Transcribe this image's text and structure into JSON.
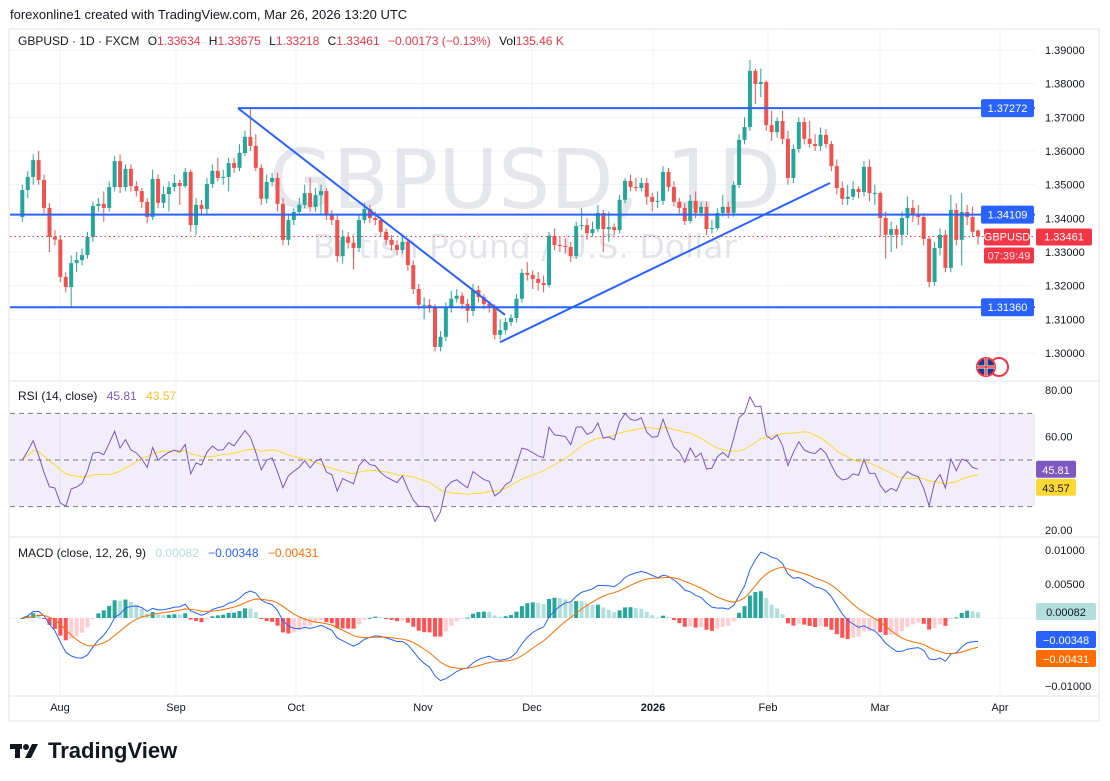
{
  "header": {
    "created_by": "forexonline1 created with TradingView.com, Mar 26, 2026 13:20 UTC"
  },
  "legend": {
    "symbol": "GBPUSD · 1D · FXCM",
    "open_label": "O",
    "open": "1.33634",
    "high_label": "H",
    "high": "1.33675",
    "low_label": "L",
    "low": "1.33218",
    "close_label": "C",
    "close": "1.33461",
    "change": "−0.00173 (−0.13%)",
    "volume_label": "Vol",
    "volume": "135.46 K"
  },
  "watermark": {
    "title": "GBPUSD, 1D",
    "subtitle": "British Pound / U.S. Dollar"
  },
  "price_label": {
    "symbol": "GBPUSD",
    "value": "1.33461",
    "countdown": "07:39:49"
  },
  "brand": "TradingView",
  "colors": {
    "up": "#26a69a",
    "down": "#ef5350",
    "drawing": "#2962ff",
    "rsi": "#7e57c2",
    "rsi_ma": "#fdd835",
    "macd": "#2962ff",
    "signal": "#ff6d00"
  },
  "chart_data": [
    {
      "type": "candlestick",
      "symbol": "GBPUSD",
      "interval": "1D",
      "ylim": [
        1.295,
        1.392
      ],
      "y_ticks": [
        "1.39000",
        "1.38000",
        "1.37000",
        "1.36000",
        "1.35000",
        "1.34000",
        "1.33000",
        "1.32000",
        "1.31000",
        "1.30000"
      ],
      "x_ticks": [
        "Aug",
        "Sep",
        "Oct",
        "Nov",
        "Dec",
        "2026",
        "Feb",
        "Mar",
        "Apr"
      ],
      "grid": true,
      "horizontal_lines": [
        {
          "price": 1.37272,
          "label": "1.37272"
        },
        {
          "price": 1.34109,
          "label": "1.34109"
        },
        {
          "price": 1.3136,
          "label": "1.31360"
        }
      ],
      "trend_lines": [
        {
          "from_price": 1.3727,
          "to_price": 1.3113
        },
        {
          "from_price": 1.3032,
          "to_price": 1.3505
        }
      ],
      "last_price": 1.33461,
      "candles": [
        [
          1.3404,
          1.35,
          1.339,
          1.3484
        ],
        [
          1.3484,
          1.354,
          1.346,
          1.3523
        ],
        [
          1.3523,
          1.359,
          1.35,
          1.3573
        ],
        [
          1.3573,
          1.36,
          1.35,
          1.3514
        ],
        [
          1.3514,
          1.353,
          1.3415,
          1.3431
        ],
        [
          1.3431,
          1.3445,
          1.33,
          1.3345
        ],
        [
          1.3345,
          1.3365,
          1.332,
          1.3337
        ],
        [
          1.3337,
          1.335,
          1.321,
          1.3226
        ],
        [
          1.3226,
          1.324,
          1.318,
          1.3196
        ],
        [
          1.3196,
          1.329,
          1.3134,
          1.3267
        ],
        [
          1.3267,
          1.33,
          1.324,
          1.3276
        ],
        [
          1.3276,
          1.331,
          1.326,
          1.3291
        ],
        [
          1.3291,
          1.336,
          1.328,
          1.3345
        ],
        [
          1.3345,
          1.345,
          1.333,
          1.3437
        ],
        [
          1.3437,
          1.346,
          1.342,
          1.3443
        ],
        [
          1.3443,
          1.348,
          1.339,
          1.3431
        ],
        [
          1.3431,
          1.351,
          1.342,
          1.3493
        ],
        [
          1.3493,
          1.3585,
          1.348,
          1.357
        ],
        [
          1.357,
          1.359,
          1.3475,
          1.3493
        ],
        [
          1.3493,
          1.356,
          1.348,
          1.3547
        ],
        [
          1.3547,
          1.356,
          1.348,
          1.3496
        ],
        [
          1.3496,
          1.351,
          1.3465,
          1.3481
        ],
        [
          1.3481,
          1.349,
          1.343,
          1.3449
        ],
        [
          1.3449,
          1.346,
          1.3385,
          1.3404
        ],
        [
          1.3404,
          1.3545,
          1.3395,
          1.3517
        ],
        [
          1.3517,
          1.353,
          1.343,
          1.3446
        ],
        [
          1.3446,
          1.3495,
          1.343,
          1.3472
        ],
        [
          1.3472,
          1.351,
          1.342,
          1.3493
        ],
        [
          1.3493,
          1.353,
          1.348,
          1.3505
        ],
        [
          1.3505,
          1.3515,
          1.344,
          1.3496
        ],
        [
          1.3496,
          1.355,
          1.349,
          1.3538
        ],
        [
          1.3538,
          1.3545,
          1.336,
          1.338
        ],
        [
          1.338,
          1.346,
          1.335,
          1.344
        ],
        [
          1.344,
          1.3455,
          1.341,
          1.3428
        ],
        [
          1.3428,
          1.352,
          1.341,
          1.3502
        ],
        [
          1.3502,
          1.356,
          1.349,
          1.3541
        ],
        [
          1.3541,
          1.358,
          1.351,
          1.352
        ],
        [
          1.352,
          1.3545,
          1.35,
          1.3523
        ],
        [
          1.3523,
          1.358,
          1.348,
          1.3564
        ],
        [
          1.3564,
          1.358,
          1.3535,
          1.355
        ],
        [
          1.355,
          1.362,
          1.354,
          1.3594
        ],
        [
          1.3594,
          1.366,
          1.3585,
          1.3642
        ],
        [
          1.3642,
          1.3728,
          1.36,
          1.3615
        ],
        [
          1.3615,
          1.365,
          1.354,
          1.355
        ],
        [
          1.355,
          1.356,
          1.344,
          1.3458
        ],
        [
          1.3458,
          1.353,
          1.3445,
          1.3508
        ],
        [
          1.3508,
          1.3535,
          1.3495,
          1.352
        ],
        [
          1.352,
          1.3535,
          1.342,
          1.3443
        ],
        [
          1.3443,
          1.346,
          1.332,
          1.3336
        ],
        [
          1.3336,
          1.341,
          1.332,
          1.3395
        ],
        [
          1.3395,
          1.343,
          1.338,
          1.3419
        ],
        [
          1.3419,
          1.346,
          1.341,
          1.344
        ],
        [
          1.344,
          1.35,
          1.343,
          1.3475
        ],
        [
          1.3475,
          1.352,
          1.342,
          1.3434
        ],
        [
          1.3434,
          1.349,
          1.342,
          1.3469
        ],
        [
          1.3469,
          1.35,
          1.341,
          1.3481
        ],
        [
          1.3481,
          1.349,
          1.3395,
          1.341
        ],
        [
          1.341,
          1.3425,
          1.338,
          1.3395
        ],
        [
          1.3395,
          1.341,
          1.327,
          1.3288
        ],
        [
          1.3288,
          1.3365,
          1.3265,
          1.3345
        ],
        [
          1.3345,
          1.336,
          1.331,
          1.3327
        ],
        [
          1.3327,
          1.3345,
          1.3248,
          1.3312
        ],
        [
          1.3312,
          1.341,
          1.33,
          1.3395
        ],
        [
          1.3395,
          1.3445,
          1.3385,
          1.3428
        ],
        [
          1.3428,
          1.344,
          1.3385,
          1.3401
        ],
        [
          1.3401,
          1.342,
          1.338,
          1.3395
        ],
        [
          1.3395,
          1.3405,
          1.3345,
          1.336
        ],
        [
          1.336,
          1.337,
          1.332,
          1.3336
        ],
        [
          1.3336,
          1.335,
          1.3305,
          1.3321
        ],
        [
          1.3321,
          1.3335,
          1.329,
          1.3306
        ],
        [
          1.3306,
          1.335,
          1.3295,
          1.333
        ],
        [
          1.333,
          1.334,
          1.3245,
          1.3261
        ],
        [
          1.3261,
          1.3275,
          1.3175,
          1.319
        ],
        [
          1.319,
          1.3205,
          1.313,
          1.3143
        ],
        [
          1.3143,
          1.3165,
          1.31,
          1.3143
        ],
        [
          1.3143,
          1.316,
          1.312,
          1.3137
        ],
        [
          1.3137,
          1.3145,
          1.3005,
          1.3018
        ],
        [
          1.3018,
          1.3065,
          1.3005,
          1.3048
        ],
        [
          1.3048,
          1.315,
          1.3035,
          1.3137
        ],
        [
          1.3137,
          1.3185,
          1.312,
          1.3161
        ],
        [
          1.3161,
          1.319,
          1.315,
          1.317
        ],
        [
          1.317,
          1.318,
          1.313,
          1.3146
        ],
        [
          1.3146,
          1.316,
          1.309,
          1.3125
        ],
        [
          1.3125,
          1.3205,
          1.311,
          1.3187
        ],
        [
          1.3187,
          1.32,
          1.315,
          1.3166
        ],
        [
          1.3166,
          1.3175,
          1.313,
          1.3146
        ],
        [
          1.3146,
          1.3155,
          1.312,
          1.3137
        ],
        [
          1.3137,
          1.3145,
          1.304,
          1.3054
        ],
        [
          1.3054,
          1.31,
          1.304,
          1.3068
        ],
        [
          1.3068,
          1.3105,
          1.3055,
          1.3092
        ],
        [
          1.3092,
          1.3115,
          1.308,
          1.3104
        ],
        [
          1.3104,
          1.3175,
          1.309,
          1.3161
        ],
        [
          1.3161,
          1.325,
          1.315,
          1.3238
        ],
        [
          1.3238,
          1.327,
          1.3215,
          1.3232
        ],
        [
          1.3232,
          1.3245,
          1.319,
          1.322
        ],
        [
          1.322,
          1.324,
          1.3185,
          1.3208
        ],
        [
          1.3208,
          1.323,
          1.318,
          1.3202
        ],
        [
          1.3202,
          1.336,
          1.3195,
          1.3348
        ],
        [
          1.3348,
          1.337,
          1.3305,
          1.3321
        ],
        [
          1.3321,
          1.3345,
          1.33,
          1.3318
        ],
        [
          1.3318,
          1.334,
          1.3295,
          1.3315
        ],
        [
          1.3315,
          1.333,
          1.327,
          1.3288
        ],
        [
          1.3288,
          1.339,
          1.328,
          1.3377
        ],
        [
          1.3377,
          1.343,
          1.3365,
          1.338
        ],
        [
          1.338,
          1.34,
          1.3335,
          1.3356
        ],
        [
          1.3356,
          1.339,
          1.3345,
          1.3368
        ],
        [
          1.3368,
          1.344,
          1.336,
          1.3416
        ],
        [
          1.3416,
          1.3425,
          1.33,
          1.3368
        ],
        [
          1.3368,
          1.342,
          1.333,
          1.3374
        ],
        [
          1.3374,
          1.3385,
          1.335,
          1.3365
        ],
        [
          1.3365,
          1.347,
          1.3355,
          1.3455
        ],
        [
          1.3455,
          1.352,
          1.3445,
          1.3511
        ],
        [
          1.3511,
          1.353,
          1.348,
          1.3493
        ],
        [
          1.3493,
          1.352,
          1.348,
          1.349
        ],
        [
          1.349,
          1.352,
          1.348,
          1.3505
        ],
        [
          1.3505,
          1.352,
          1.344,
          1.3464
        ],
        [
          1.3464,
          1.3475,
          1.342,
          1.3449
        ],
        [
          1.3449,
          1.348,
          1.343,
          1.3452
        ],
        [
          1.3452,
          1.3555,
          1.344,
          1.3538
        ],
        [
          1.3538,
          1.355,
          1.348,
          1.3493
        ],
        [
          1.3493,
          1.351,
          1.3435,
          1.3449
        ],
        [
          1.3449,
          1.346,
          1.3415,
          1.3431
        ],
        [
          1.3431,
          1.3445,
          1.338,
          1.3392
        ],
        [
          1.3392,
          1.347,
          1.3385,
          1.3452
        ],
        [
          1.3452,
          1.348,
          1.34,
          1.3416
        ],
        [
          1.3416,
          1.345,
          1.3405,
          1.3434
        ],
        [
          1.3434,
          1.345,
          1.335,
          1.3368
        ],
        [
          1.3368,
          1.3395,
          1.3355,
          1.3371
        ],
        [
          1.3371,
          1.343,
          1.3365,
          1.3416
        ],
        [
          1.3416,
          1.347,
          1.3405,
          1.3434
        ],
        [
          1.3434,
          1.345,
          1.34,
          1.3416
        ],
        [
          1.3416,
          1.351,
          1.3405,
          1.3499
        ],
        [
          1.3499,
          1.365,
          1.349,
          1.3633
        ],
        [
          1.3633,
          1.37,
          1.362,
          1.3671
        ],
        [
          1.3671,
          1.387,
          1.366,
          1.3838
        ],
        [
          1.3838,
          1.3845,
          1.374,
          1.3799
        ],
        [
          1.3799,
          1.3845,
          1.376,
          1.3805
        ],
        [
          1.3805,
          1.381,
          1.366,
          1.3677
        ],
        [
          1.3677,
          1.372,
          1.363,
          1.3656
        ],
        [
          1.3656,
          1.37,
          1.364,
          1.3689
        ],
        [
          1.3689,
          1.372,
          1.362,
          1.3636
        ],
        [
          1.3636,
          1.366,
          1.35,
          1.352
        ],
        [
          1.352,
          1.362,
          1.3505,
          1.3606
        ],
        [
          1.3606,
          1.37,
          1.3595,
          1.3686
        ],
        [
          1.3686,
          1.37,
          1.362,
          1.3636
        ],
        [
          1.3636,
          1.369,
          1.361,
          1.3621
        ],
        [
          1.3621,
          1.365,
          1.36,
          1.3615
        ],
        [
          1.3615,
          1.367,
          1.36,
          1.3648
        ],
        [
          1.3648,
          1.3665,
          1.361,
          1.3621
        ],
        [
          1.3621,
          1.363,
          1.354,
          1.3555
        ],
        [
          1.3555,
          1.3575,
          1.347,
          1.349
        ],
        [
          1.349,
          1.351,
          1.344,
          1.3458
        ],
        [
          1.3458,
          1.35,
          1.344,
          1.3464
        ],
        [
          1.3464,
          1.351,
          1.3455,
          1.3487
        ],
        [
          1.3487,
          1.3495,
          1.346,
          1.3478
        ],
        [
          1.3478,
          1.357,
          1.3465,
          1.3553
        ],
        [
          1.3553,
          1.3575,
          1.345,
          1.3475
        ],
        [
          1.3475,
          1.35,
          1.344,
          1.3475
        ],
        [
          1.3475,
          1.348,
          1.3345,
          1.3401
        ],
        [
          1.3401,
          1.342,
          1.328,
          1.3351
        ],
        [
          1.3351,
          1.339,
          1.33,
          1.3368
        ],
        [
          1.3368,
          1.338,
          1.331,
          1.3351
        ],
        [
          1.3351,
          1.342,
          1.332,
          1.3401
        ],
        [
          1.3401,
          1.3465,
          1.335,
          1.3431
        ],
        [
          1.3431,
          1.3455,
          1.339,
          1.3413
        ],
        [
          1.3413,
          1.344,
          1.338,
          1.3404
        ],
        [
          1.3404,
          1.3415,
          1.332,
          1.3339
        ],
        [
          1.3339,
          1.3345,
          1.3195,
          1.3211
        ],
        [
          1.3211,
          1.333,
          1.32,
          1.3312
        ],
        [
          1.3312,
          1.337,
          1.329,
          1.3351
        ],
        [
          1.3351,
          1.3365,
          1.324,
          1.3253
        ],
        [
          1.3253,
          1.347,
          1.324,
          1.3425
        ],
        [
          1.3425,
          1.3445,
          1.332,
          1.3336
        ],
        [
          1.3336,
          1.3475,
          1.326,
          1.3419
        ],
        [
          1.3419,
          1.344,
          1.338,
          1.3404
        ],
        [
          1.3404,
          1.3435,
          1.3345,
          1.336
        ],
        [
          1.33634,
          1.33675,
          1.33218,
          1.33461
        ]
      ]
    },
    {
      "type": "line",
      "title": "RSI (14, close)",
      "series": [
        {
          "name": "RSI",
          "last": "45.81"
        },
        {
          "name": "RSI-based MA",
          "last": "43.57"
        }
      ],
      "y_ticks": [
        "80.00",
        "60.00",
        "20.00"
      ],
      "bands": [
        70,
        50,
        30
      ],
      "ylim": [
        20,
        80
      ]
    },
    {
      "type": "line+bar",
      "title": "MACD (close, 12, 26, 9)",
      "series": [
        {
          "name": "Histogram",
          "last": "0.00082"
        },
        {
          "name": "MACD",
          "last": "−0.00348"
        },
        {
          "name": "Signal",
          "last": "−0.00431"
        }
      ],
      "y_ticks": [
        "0.01000",
        "0.00500",
        "−0.01000"
      ],
      "ylim": [
        -0.0102,
        0.0102
      ]
    }
  ]
}
